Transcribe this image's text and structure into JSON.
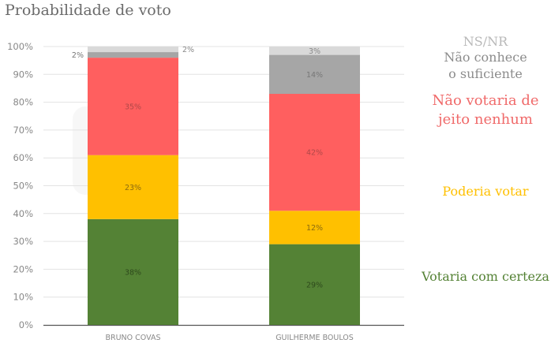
{
  "chart_data": {
    "type": "bar",
    "stacked": true,
    "title": "Probabilidade de voto",
    "categories": [
      "BRUNO COVAS",
      "GUILHERME BOULOS"
    ],
    "ylim": [
      0,
      100
    ],
    "yticks": [
      "0%",
      "10%",
      "20%",
      "30%",
      "40%",
      "50%",
      "60%",
      "70%",
      "80%",
      "90%",
      "100%"
    ],
    "grid": true,
    "legend_placement": "right",
    "series": [
      {
        "name": "Votaria com certeza",
        "values": [
          38,
          29
        ],
        "color": "#548235",
        "label_color": "#2e4a1c",
        "labels": [
          "38%",
          "29%"
        ]
      },
      {
        "name": "Poderia votar",
        "values": [
          23,
          12
        ],
        "color": "#FFC000",
        "label_color": "#8a6a10",
        "labels": [
          "23%",
          "12%"
        ]
      },
      {
        "name": "Não votaria de\njeito nenhum",
        "values": [
          35,
          42
        ],
        "color": "#FF5F5F",
        "label_color": "#b04848",
        "labels": [
          "35%",
          "42%"
        ]
      },
      {
        "name": "Não conhece\no suficiente",
        "values": [
          2,
          14
        ],
        "color": "#A6A6A6",
        "label_color": "#777777",
        "labels": [
          "2%",
          "14%"
        ]
      },
      {
        "name": "NS/NR",
        "values": [
          2,
          3
        ],
        "color": "#D9D9D9",
        "label_color": "#888888",
        "labels": [
          "2%",
          "3%"
        ]
      }
    ],
    "legend_colors": [
      "#548235",
      "#FFC000",
      "#F06A6A",
      "#8c8c8c",
      "#b8b8b8"
    ]
  },
  "watermark": "investimentos"
}
